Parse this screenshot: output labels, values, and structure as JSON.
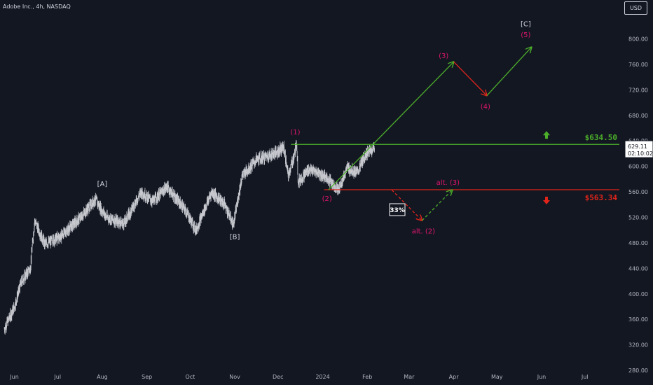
{
  "header": {
    "title": "Adobe Inc., 4h, NASDAQ",
    "currency_button": "USD"
  },
  "colors": {
    "background": "#131722",
    "candles": "#c7c9cf",
    "bullish": "#4caf2a",
    "bearish": "#e0241a",
    "wave_label": "#e0156e",
    "corrective_label": "#d1d4dc"
  },
  "chart_data": {
    "type": "line",
    "title": "Adobe Inc., 4h, NASDAQ",
    "xlabel": "",
    "ylabel": "",
    "ylim": [
      268,
      828
    ],
    "x_ticks": [
      "Jun",
      "Jul",
      "Aug",
      "Sep",
      "Oct",
      "Nov",
      "Dec",
      "2024",
      "Feb",
      "Mar",
      "Apr",
      "May",
      "Jun",
      "Jul"
    ],
    "y_ticks": [
      280.0,
      320.0,
      360.0,
      400.0,
      440.0,
      480.0,
      520.0,
      560.0,
      600.0,
      640.0,
      680.0,
      720.0,
      760.0,
      800.0
    ],
    "grid": false,
    "series": [
      {
        "name": "",
        "x": [
          "2023-05-25",
          "2023-06-01",
          "2023-06-06",
          "2023-06-12",
          "2023-06-15",
          "2023-06-22",
          "2023-07-03",
          "2023-07-17",
          "2023-07-27",
          "2023-08-04",
          "2023-08-16",
          "2023-08-28",
          "2023-09-05",
          "2023-09-15",
          "2023-09-21",
          "2023-09-28",
          "2023-10-05",
          "2023-10-16",
          "2023-10-25",
          "2023-10-31",
          "2023-11-06",
          "2023-11-16",
          "2023-11-28",
          "2023-12-05",
          "2023-12-08",
          "2023-12-12",
          "2023-12-14",
          "2023-12-15",
          "2023-12-22",
          "2023-12-29",
          "2024-01-05",
          "2024-01-12",
          "2024-01-18",
          "2024-01-25",
          "2024-01-31",
          "2024-02-06"
        ],
        "values": [
          345,
          380,
          420,
          440,
          515,
          478,
          490,
          520,
          548,
          520,
          510,
          560,
          545,
          568,
          550,
          530,
          500,
          560,
          540,
          508,
          585,
          610,
          620,
          630,
          585,
          615,
          637,
          575,
          595,
          590,
          580,
          563,
          598,
          590,
          620,
          629.11
        ]
      }
    ],
    "last_price": 629.11,
    "countdown": "02:10:02",
    "levels": [
      {
        "label": "$634.50",
        "value": 634.5,
        "color": "#4caf2a"
      },
      {
        "label": "$563.34",
        "value": 563.34,
        "color": "#e0241a"
      }
    ],
    "probability_box": "33%",
    "wave_labels": [
      {
        "text": "[A]",
        "date": "2023-08-01",
        "price": 569
      },
      {
        "text": "[B]",
        "date": "2023-11-01",
        "price": 486
      },
      {
        "text": "(1)",
        "date": "2023-12-13",
        "price": 650
      },
      {
        "text": "(2)",
        "date": "2024-01-04",
        "price": 546
      },
      {
        "text": "(3)",
        "date": "2024-03-25",
        "price": 770
      },
      {
        "text": "(4)",
        "date": "2024-04-23",
        "price": 690
      },
      {
        "text": "(5)",
        "date": "2024-05-21",
        "price": 803
      },
      {
        "text": "[C]",
        "date": "2024-05-21",
        "price": 820
      },
      {
        "text": "alt. (3)",
        "date": "2024-03-28",
        "price": 571
      },
      {
        "text": "alt. (2)",
        "date": "2024-03-11",
        "price": 495
      }
    ],
    "projections": [
      {
        "name": "bull-1",
        "from": {
          "date": "2024-01-05",
          "price": 563
        },
        "to": {
          "date": "2024-04-01",
          "price": 764
        },
        "color": "#4caf2a",
        "dashed": false
      },
      {
        "name": "bear-1",
        "from": {
          "date": "2024-04-01",
          "price": 764
        },
        "to": {
          "date": "2024-04-24",
          "price": 711
        },
        "color": "#e0241a",
        "dashed": false
      },
      {
        "name": "bull-2",
        "from": {
          "date": "2024-04-24",
          "price": 711
        },
        "to": {
          "date": "2024-05-25",
          "price": 787
        },
        "color": "#4caf2a",
        "dashed": false
      },
      {
        "name": "alt-bear",
        "from": {
          "date": "2024-02-18",
          "price": 563
        },
        "to": {
          "date": "2024-03-10",
          "price": 515
        },
        "color": "#e0241a",
        "dashed": true
      },
      {
        "name": "alt-bull",
        "from": {
          "date": "2024-03-10",
          "price": 515
        },
        "to": {
          "date": "2024-03-31",
          "price": 563
        },
        "color": "#4caf2a",
        "dashed": true
      }
    ]
  }
}
